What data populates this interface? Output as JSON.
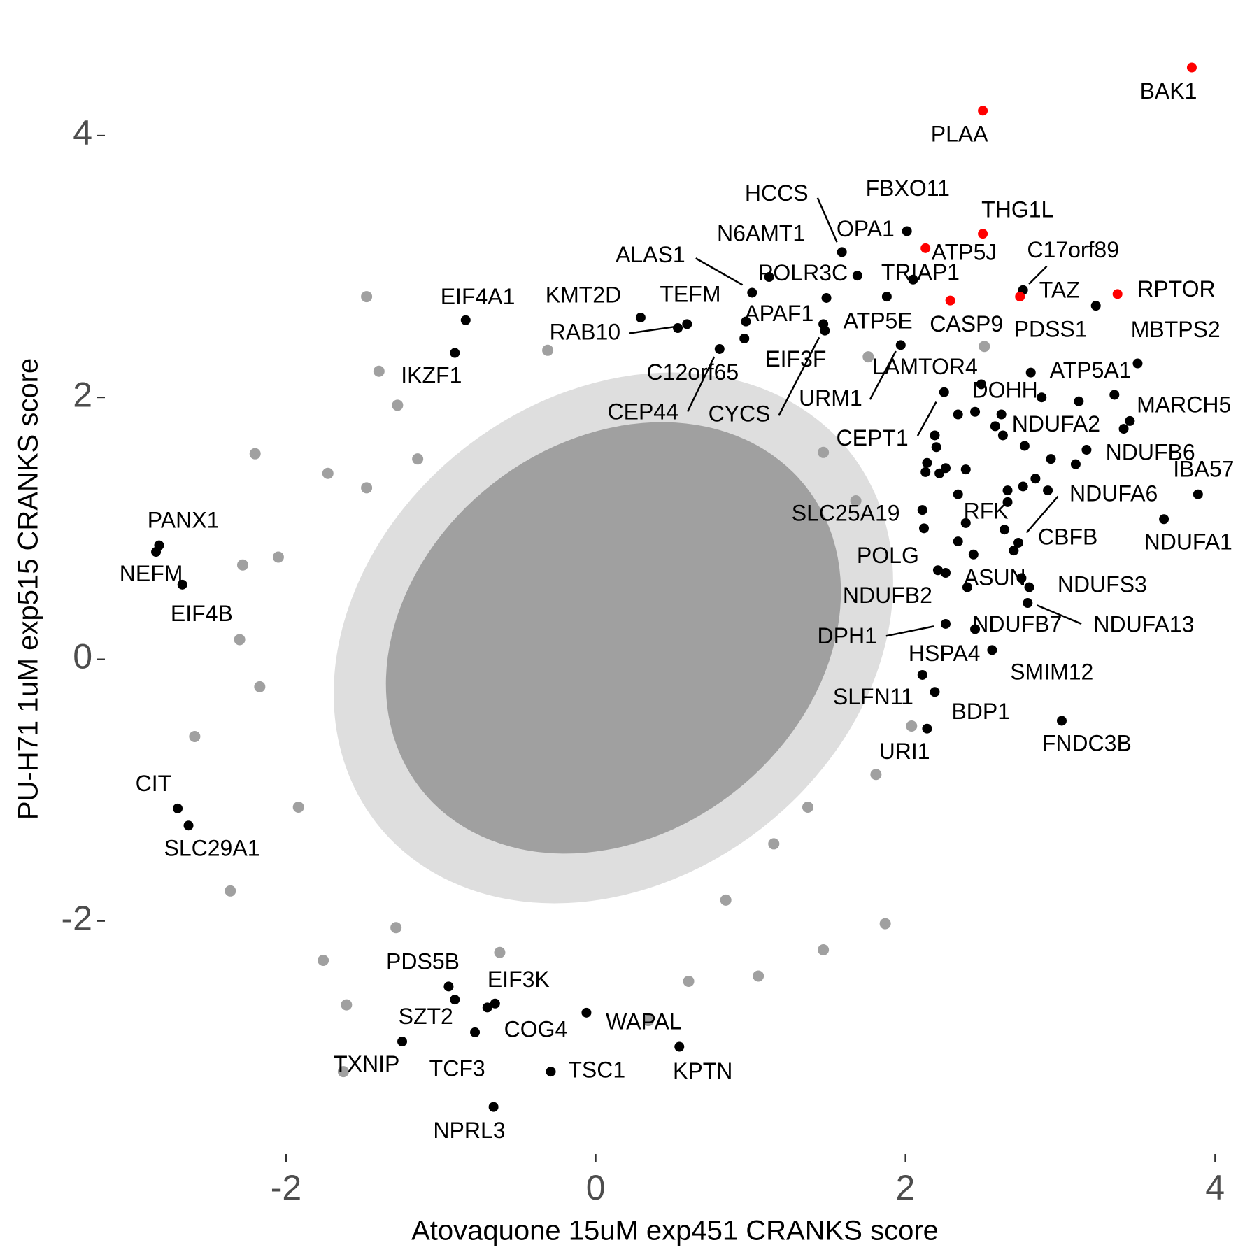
{
  "chart_data": {
    "type": "scatter",
    "xlabel": "Atovaquone 15uM exp451 CRANKS score",
    "ylabel": "PU-H71 1uM exp515 CRANKS score",
    "xlim": [
      -3.17,
      4.18
    ],
    "ylim": [
      -3.78,
      4.79
    ],
    "xticks": [
      -2,
      0,
      2,
      4
    ],
    "yticks": [
      -2,
      0,
      2,
      4
    ],
    "grid": false,
    "series": [
      {
        "color": "#a0a0a0",
        "x": [
          -1.48,
          -2.2,
          -1.73,
          -1.28,
          -1.48,
          -1.15,
          -0.31,
          2.51,
          1.76,
          1.87,
          1.47,
          0.6,
          1.05,
          -1.63,
          -2.36,
          -2.59,
          -2.3,
          -2.05,
          -2.17,
          1.81,
          1.15,
          0.34,
          -1.76,
          -1.61,
          2.04,
          1.68,
          1.47,
          -1.4,
          -1.92,
          -0.62,
          0.84,
          1.37,
          -2.28,
          -1.29
        ],
        "y": [
          2.77,
          1.57,
          1.42,
          1.94,
          1.31,
          1.53,
          2.36,
          2.39,
          2.31,
          -2.02,
          -2.22,
          -2.46,
          -2.42,
          -3.15,
          -1.77,
          -0.59,
          0.15,
          0.78,
          -0.21,
          -0.88,
          -1.41,
          -2.76,
          -2.3,
          -2.64,
          -0.51,
          1.21,
          1.58,
          2.2,
          -1.13,
          -2.24,
          -1.84,
          -1.13,
          0.72,
          -2.05
        ]
      },
      {
        "color": "#000000",
        "x": [
          2.01,
          1.59,
          1.69,
          1.12,
          1.01,
          1.49,
          2.05,
          1.88,
          0.97,
          0.29,
          0.59,
          0.53,
          -0.84,
          -0.91,
          0.8,
          0.96,
          1.47,
          1.48,
          1.97,
          2.25,
          2.45,
          2.34,
          2.81,
          3.23,
          3.5,
          3.45,
          3.41,
          3.89,
          3.67,
          2.77,
          2.73,
          2.7,
          2.75,
          2.8,
          2.79,
          2.4,
          2.21,
          2.26,
          2.26,
          2.45,
          2.56,
          2.11,
          2.19,
          2.14,
          3.01,
          2.39,
          2.11,
          -2.82,
          -2.84,
          -2.67,
          -2.7,
          -2.63,
          -0.95,
          -0.91,
          -0.65,
          -0.7,
          -1.25,
          -0.78,
          -0.06,
          -0.29,
          0.54,
          -0.66,
          2.76
        ],
        "y": [
          3.27,
          3.11,
          2.93,
          2.92,
          2.8,
          2.76,
          2.9,
          2.77,
          2.58,
          2.61,
          2.56,
          2.53,
          2.59,
          2.34,
          2.37,
          2.45,
          2.56,
          2.51,
          2.4,
          2.04,
          1.89,
          1.87,
          2.19,
          2.7,
          2.26,
          1.82,
          1.76,
          1.26,
          1.07,
          1.63,
          0.89,
          0.83,
          0.62,
          0.55,
          0.43,
          0.55,
          0.68,
          0.66,
          0.27,
          0.23,
          0.07,
          -0.12,
          -0.25,
          -0.53,
          -0.47,
          1.04,
          1.14,
          0.87,
          0.82,
          0.57,
          -1.14,
          -1.27,
          -2.5,
          -2.6,
          -2.63,
          -2.66,
          -2.92,
          -2.85,
          -2.7,
          -3.15,
          -2.96,
          -3.42,
          2.82
        ],
        "labels": [
          "FBXO11",
          "HCCS",
          "OPA1",
          "N6AMT1",
          "ALAS1",
          "POLR3C",
          "TRIAP1",
          "ATP5E",
          "APAF1",
          "KMT2D",
          "TEFM",
          "RAB10",
          "EIF4A1",
          "IKZF1",
          "CEP44",
          "C12orf65",
          "EIF3F",
          "CYCS",
          "URM1",
          "CEPT1",
          "LAMTOR4",
          "DOHH",
          "ATP5A1",
          "PDSS1",
          "MBTPS2",
          "MARCH5",
          "NDUFB6",
          "IBA57",
          "NDUFA1",
          "NDUFA2",
          "NDUFA6",
          "CBFB",
          "NDUFS3",
          "NDUFA13",
          "NDUFB7",
          "ASUN",
          "POLG",
          "NDUFB2",
          "DPH1",
          "HSPA4",
          "SMIM12",
          "SLFN11",
          "BDP1",
          "URI1",
          "FNDC3B",
          "RFK",
          "SLC25A19",
          "PANX1",
          "NEFM",
          "EIF4B",
          "CIT",
          "SLC29A1",
          "PDS5B",
          "SZT2",
          "EIF3K",
          "COG4",
          "TXNIP",
          "TCF3",
          "WAPAL",
          "TSC1",
          "KPTN",
          "NPRL3",
          "C17orf89"
        ]
      },
      {
        "color": "#000000",
        "x": [
          2.58,
          2.63,
          2.88,
          3.12,
          3.35,
          3.17,
          3.1,
          2.94,
          2.84,
          2.92,
          2.76,
          2.66,
          2.66,
          2.62,
          2.49,
          2.19,
          2.2,
          2.14,
          2.22,
          2.26,
          2.39,
          2.34,
          2.13,
          2.44,
          2.34,
          2.12,
          2.64
        ],
        "y": [
          1.78,
          1.71,
          2.0,
          1.97,
          2.02,
          1.6,
          1.49,
          1.53,
          1.38,
          1.29,
          1.32,
          1.29,
          1.2,
          1.87,
          2.1,
          1.71,
          1.62,
          1.5,
          1.42,
          1.46,
          1.45,
          1.26,
          1.43,
          0.8,
          0.9,
          1.0,
          0.99
        ]
      },
      {
        "color": "#ff0000",
        "x": [
          3.85,
          2.5,
          2.5,
          2.13,
          2.29,
          2.74,
          3.37
        ],
        "y": [
          4.52,
          4.19,
          3.25,
          3.14,
          2.74,
          2.77,
          2.79
        ],
        "labels": [
          "BAK1",
          "PLAA",
          "THG1L",
          "ATP5J",
          "CASP9",
          "TAZ",
          "RPTOR"
        ]
      }
    ]
  }
}
